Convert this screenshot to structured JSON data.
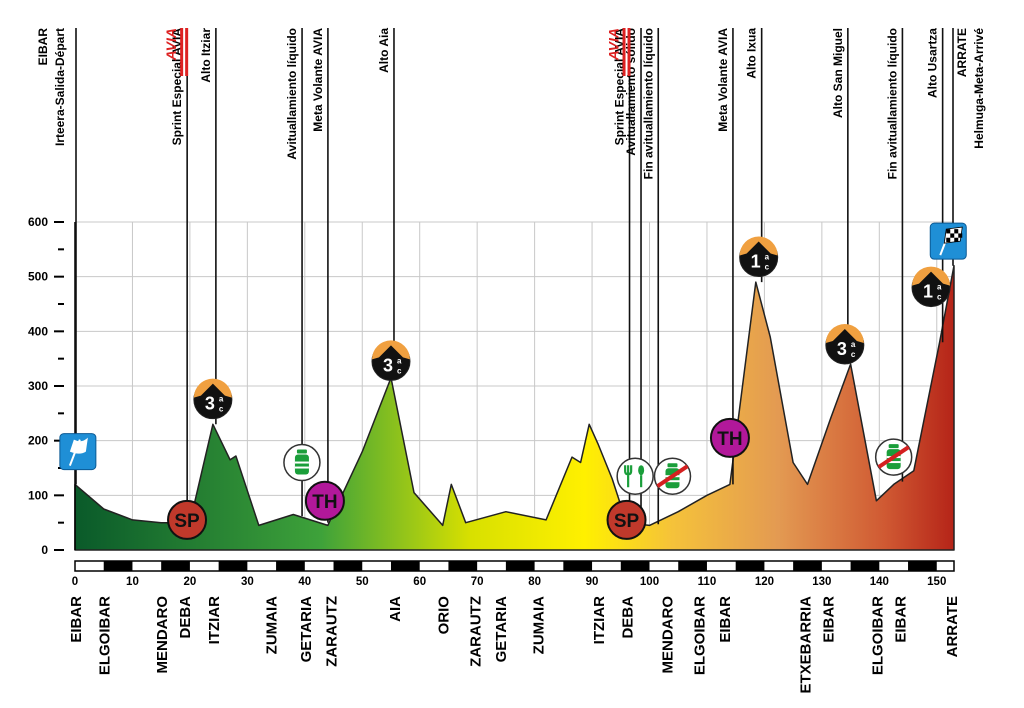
{
  "chart_data": {
    "type": "area",
    "title": "",
    "xlabel": "",
    "ylabel": "",
    "xlim": [
      0,
      153
    ],
    "ylim": [
      0,
      600
    ],
    "grid": true,
    "y_ticks": [
      "0",
      "100",
      "200",
      "300",
      "400",
      "500",
      "600"
    ],
    "x_ticks": [
      "0",
      "10",
      "20",
      "30",
      "40",
      "50",
      "60",
      "70",
      "80",
      "90",
      "100",
      "110",
      "120",
      "130",
      "140",
      "150"
    ],
    "profile": {
      "x": [
        0,
        5,
        10,
        15,
        20,
        24,
        27,
        28,
        32,
        38,
        44,
        50,
        55,
        59,
        64,
        65.5,
        68,
        75,
        82,
        86.5,
        88,
        89.5,
        91,
        93.5,
        96,
        100,
        105,
        110,
        114,
        118.5,
        121,
        125,
        127.5,
        131.5,
        135,
        139.5,
        142.5,
        146,
        150.5,
        153
      ],
      "y": [
        120,
        75,
        55,
        50,
        50,
        230,
        165,
        172,
        45,
        65,
        45,
        180,
        315,
        105,
        45,
        120,
        50,
        70,
        55,
        170,
        160,
        230,
        195,
        130,
        50,
        45,
        70,
        100,
        120,
        490,
        390,
        160,
        120,
        240,
        340,
        90,
        120,
        145,
        380,
        520
      ]
    },
    "top_labels": [
      {
        "text": "EIBAR",
        "km": 0
      },
      {
        "text": "Irteera-Salida-Départ",
        "km": 0
      },
      {
        "text": "Sprint Especial AVIA",
        "km": 19
      },
      {
        "text": "Alto Itziar",
        "km": 24
      },
      {
        "text": "Avituallamiento líquido",
        "km": 39
      },
      {
        "text": "Meta Volante AVIA",
        "km": 43.5
      },
      {
        "text": "Alto Aia",
        "km": 55
      },
      {
        "text": "Sprint Especial AVIA",
        "km": 96
      },
      {
        "text": "Avituallamiento sólido",
        "km": 98
      },
      {
        "text": "Fin avituallamiento líquido",
        "km": 101
      },
      {
        "text": "Meta Volante AVIA",
        "km": 114
      },
      {
        "text": "Alto Ixua",
        "km": 119
      },
      {
        "text": "Alto San Miguel",
        "km": 134
      },
      {
        "text": "Fin avituallamiento líquido",
        "km": 143.5
      },
      {
        "text": "Alto Usartza",
        "km": 150.5
      },
      {
        "text": "ARRATE",
        "km": 153
      },
      {
        "text": "Helmuga-Meta-Arrivé",
        "km": 153
      }
    ],
    "sponsor_logo": "AVIA",
    "bottom_labels": [
      {
        "text": "EIBAR",
        "km": 0
      },
      {
        "text": "ELGOIBAR",
        "km": 5
      },
      {
        "text": "MENDARO",
        "km": 15
      },
      {
        "text": "DEBA",
        "km": 19
      },
      {
        "text": "ITZIAR",
        "km": 24
      },
      {
        "text": "ZUMAIA",
        "km": 34
      },
      {
        "text": "GETARIA",
        "km": 40
      },
      {
        "text": "ZARAUTZ",
        "km": 44.5
      },
      {
        "text": "AIA",
        "km": 55.5
      },
      {
        "text": "ORIO",
        "km": 64
      },
      {
        "text": "ZARAUTZ",
        "km": 69.5
      },
      {
        "text": "GETARIA",
        "km": 74
      },
      {
        "text": "ZUMAIA",
        "km": 80.5
      },
      {
        "text": "ITZIAR",
        "km": 91
      },
      {
        "text": "DEBA",
        "km": 96
      },
      {
        "text": "MENDARO",
        "km": 103
      },
      {
        "text": "ELGOIBAR",
        "km": 108.5
      },
      {
        "text": "EIBAR",
        "km": 113
      },
      {
        "text": "ETXEBARRIA",
        "km": 127
      },
      {
        "text": "EIBAR",
        "km": 131
      },
      {
        "text": "ELGOIBAR",
        "km": 139.5
      },
      {
        "text": "EIBAR",
        "km": 143.5
      },
      {
        "text": "ARRATE",
        "km": 152.5
      }
    ],
    "markers": [
      {
        "type": "start-flag-icon",
        "km": 0.5,
        "alt": 180
      },
      {
        "type": "sprint",
        "text": "SP",
        "km": 19.5,
        "alt": 55
      },
      {
        "type": "climb",
        "text": "3",
        "sup": "a",
        "sub": "c",
        "km": 24,
        "alt": 275
      },
      {
        "type": "feed-liquid",
        "km": 39.5,
        "alt": 160
      },
      {
        "type": "intermediate",
        "text": "TH",
        "km": 43.5,
        "alt": 90
      },
      {
        "type": "climb",
        "text": "3",
        "sup": "a",
        "sub": "c",
        "km": 55,
        "alt": 345
      },
      {
        "type": "sprint",
        "text": "SP",
        "km": 96,
        "alt": 55
      },
      {
        "type": "feed-solid",
        "km": 97.5,
        "alt": 135
      },
      {
        "type": "feed-end",
        "km": 104,
        "alt": 135
      },
      {
        "type": "intermediate",
        "text": "TH",
        "km": 114,
        "alt": 205
      },
      {
        "type": "climb",
        "text": "1",
        "sup": "a",
        "sub": "c",
        "km": 119,
        "alt": 535
      },
      {
        "type": "climb",
        "text": "3",
        "sup": "a",
        "sub": "c",
        "km": 134,
        "alt": 375
      },
      {
        "type": "feed-end",
        "km": 142.5,
        "alt": 170
      },
      {
        "type": "climb",
        "text": "1",
        "sup": "a",
        "sub": "c",
        "km": 149,
        "alt": 480
      },
      {
        "type": "finish-flag-icon",
        "km": 152,
        "alt": 565
      }
    ]
  }
}
